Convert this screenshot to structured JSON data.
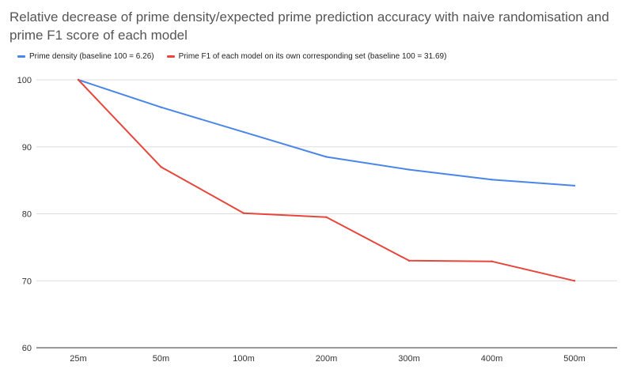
{
  "chart_data": {
    "type": "line",
    "title": "Relative decrease of prime density/expected prime prediction accuracy with naive randomisation and prime F1 score of each model",
    "xlabel": "",
    "ylabel": "",
    "categories": [
      "25m",
      "50m",
      "100m",
      "200m",
      "300m",
      "400m",
      "500m"
    ],
    "ylim": [
      60,
      100
    ],
    "yticks": [
      60,
      70,
      80,
      90,
      100
    ],
    "grid": true,
    "legend_position": "top-left",
    "series": [
      {
        "name": "Prime density (baseline 100 = 6.26)",
        "color": "#4a86e8",
        "values": [
          100,
          95.9,
          92.2,
          88.5,
          86.6,
          85.1,
          84.2
        ]
      },
      {
        "name": "Prime F1 of each model on its own corresponding set (baseline 100 =  31.69)",
        "color": "#e8453c",
        "values": [
          100,
          87.0,
          80.1,
          79.5,
          73.0,
          72.9,
          70.0
        ]
      }
    ]
  }
}
